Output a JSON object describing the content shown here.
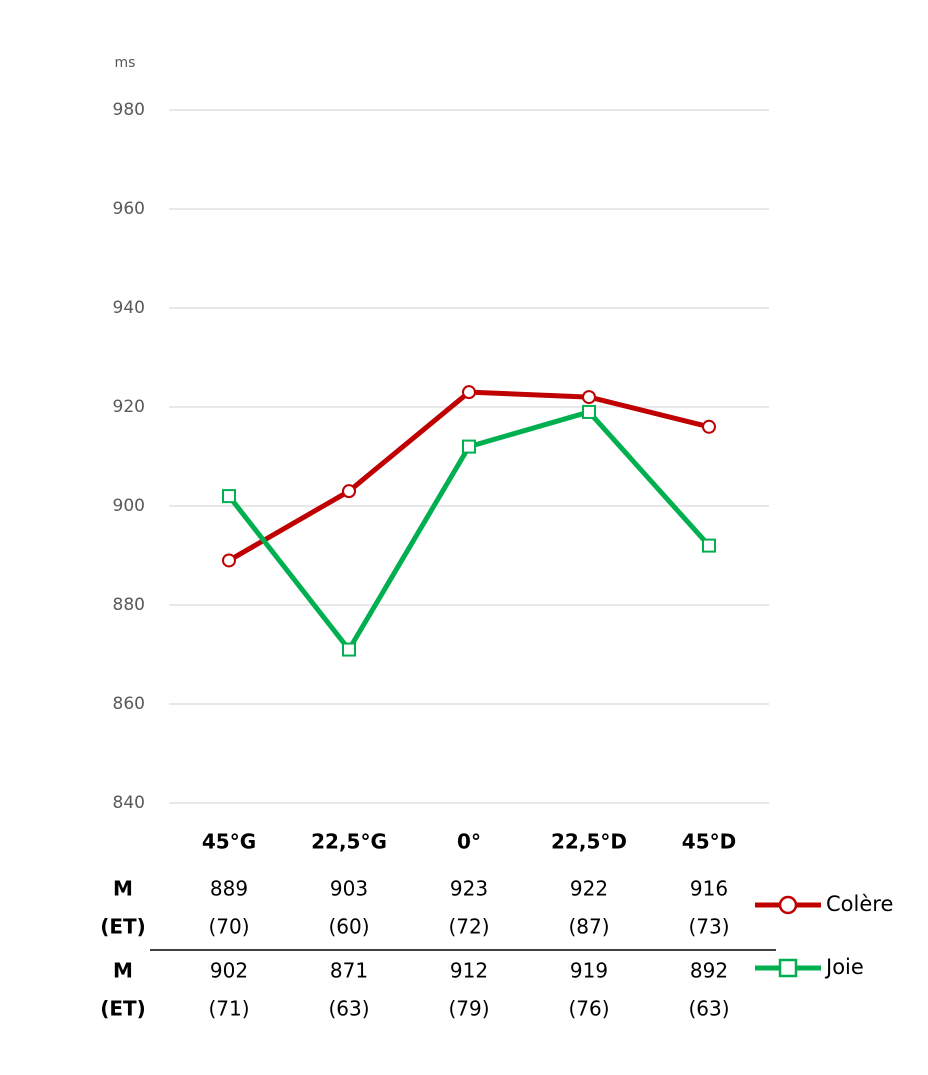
{
  "chart_data": {
    "type": "line",
    "y_unit": "ms",
    "categories": [
      "45°G",
      "22,5°G",
      "0°",
      "22,5°D",
      "45°D"
    ],
    "ylim": [
      840,
      980
    ],
    "yticks": [
      840,
      860,
      880,
      900,
      920,
      940,
      960,
      980
    ],
    "grid": true,
    "row_labels": [
      "M",
      "(ET)"
    ],
    "series": [
      {
        "name": "Colère",
        "color": "#c00000",
        "marker": "circle",
        "values": [
          889,
          903,
          923,
          922,
          916
        ],
        "sd": [
          70,
          60,
          72,
          87,
          73
        ],
        "sd_labels": [
          "(70)",
          "(60)",
          "(72)",
          "(87)",
          "(73)"
        ]
      },
      {
        "name": "Joie",
        "color": "#00b050",
        "marker": "square",
        "values": [
          902,
          871,
          912,
          919,
          892
        ],
        "sd": [
          71,
          63,
          79,
          76,
          63
        ],
        "sd_labels": [
          "(71)",
          "(63)",
          "(79)",
          "(76)",
          "(63)"
        ]
      }
    ]
  }
}
